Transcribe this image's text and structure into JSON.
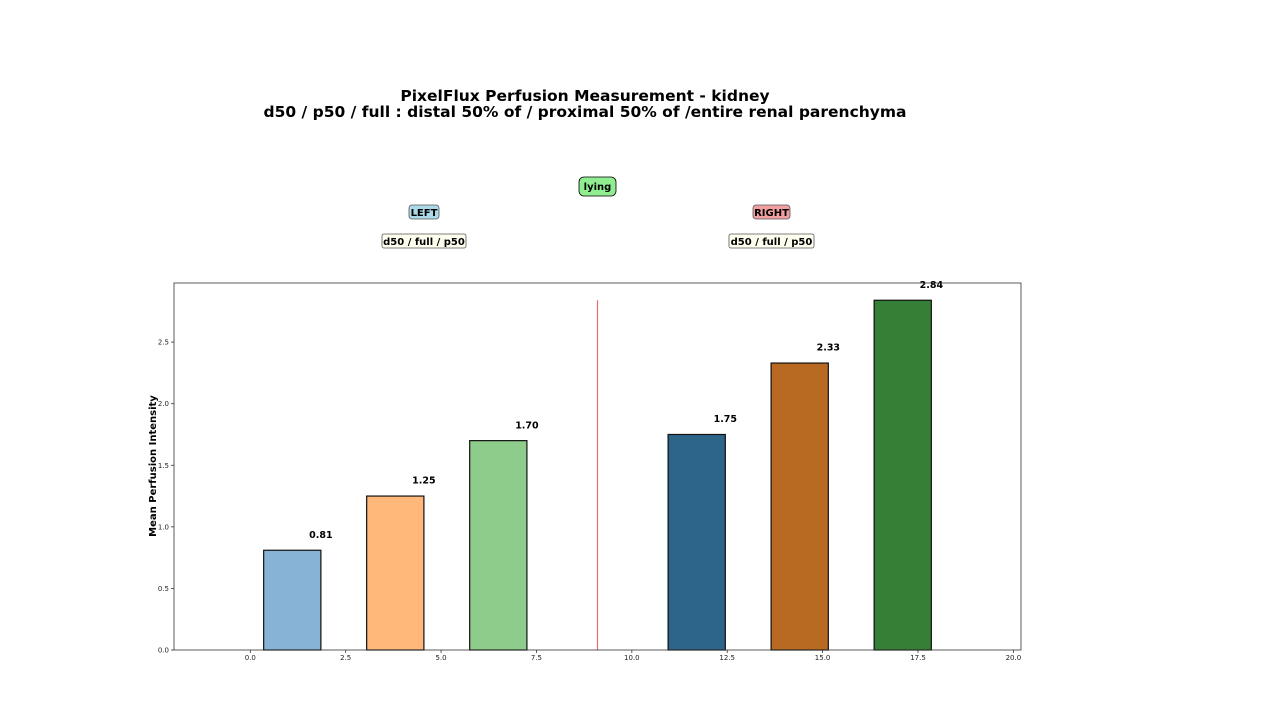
{
  "chart_data": {
    "type": "bar",
    "title_line1": "PixelFlux Perfusion Measurement - kidney",
    "title_line2": "d50 / p50 / full  : distal 50% of / proximal 50% of /entire renal parenchyma",
    "xlabel": "",
    "ylabel": "Mean Perfusion Intensity",
    "xlim": [
      -2.0,
      20.2
    ],
    "ylim": [
      0,
      2.98
    ],
    "xticks": [
      "0.0",
      "2.5",
      "5.0",
      "7.5",
      "10.0",
      "12.5",
      "15.0",
      "17.5",
      "20.0"
    ],
    "yticks": [
      "0.0",
      "0.5",
      "1.0",
      "1.5",
      "2.0",
      "2.5"
    ],
    "bar_width": 1.5,
    "bars": [
      {
        "x": 1.1,
        "value": 0.81,
        "label": "0.81",
        "color": "#87b4d6",
        "group": "LEFT",
        "region": "d50"
      },
      {
        "x": 3.8,
        "value": 1.25,
        "label": "1.25",
        "color": "#ffb87a",
        "group": "LEFT",
        "region": "full"
      },
      {
        "x": 6.5,
        "value": 1.7,
        "label": "1.70",
        "color": "#8dcc8a",
        "group": "LEFT",
        "region": "p50"
      },
      {
        "x": 11.7,
        "value": 1.75,
        "label": "1.75",
        "color": "#2d6489",
        "group": "RIGHT",
        "region": "d50"
      },
      {
        "x": 14.4,
        "value": 2.33,
        "label": "2.33",
        "color": "#b86a22",
        "group": "RIGHT",
        "region": "full"
      },
      {
        "x": 17.1,
        "value": 2.84,
        "label": "2.84",
        "color": "#367f37",
        "group": "RIGHT",
        "region": "p50"
      }
    ],
    "separator": {
      "x": 9.1,
      "y_max": 2.84,
      "color": "#e07070"
    },
    "annotations": {
      "position": "lying",
      "left_label": "LEFT",
      "right_label": "RIGHT",
      "left_order": "d50 / full / p50",
      "right_order": "d50 / full / p50"
    },
    "grid": false
  }
}
